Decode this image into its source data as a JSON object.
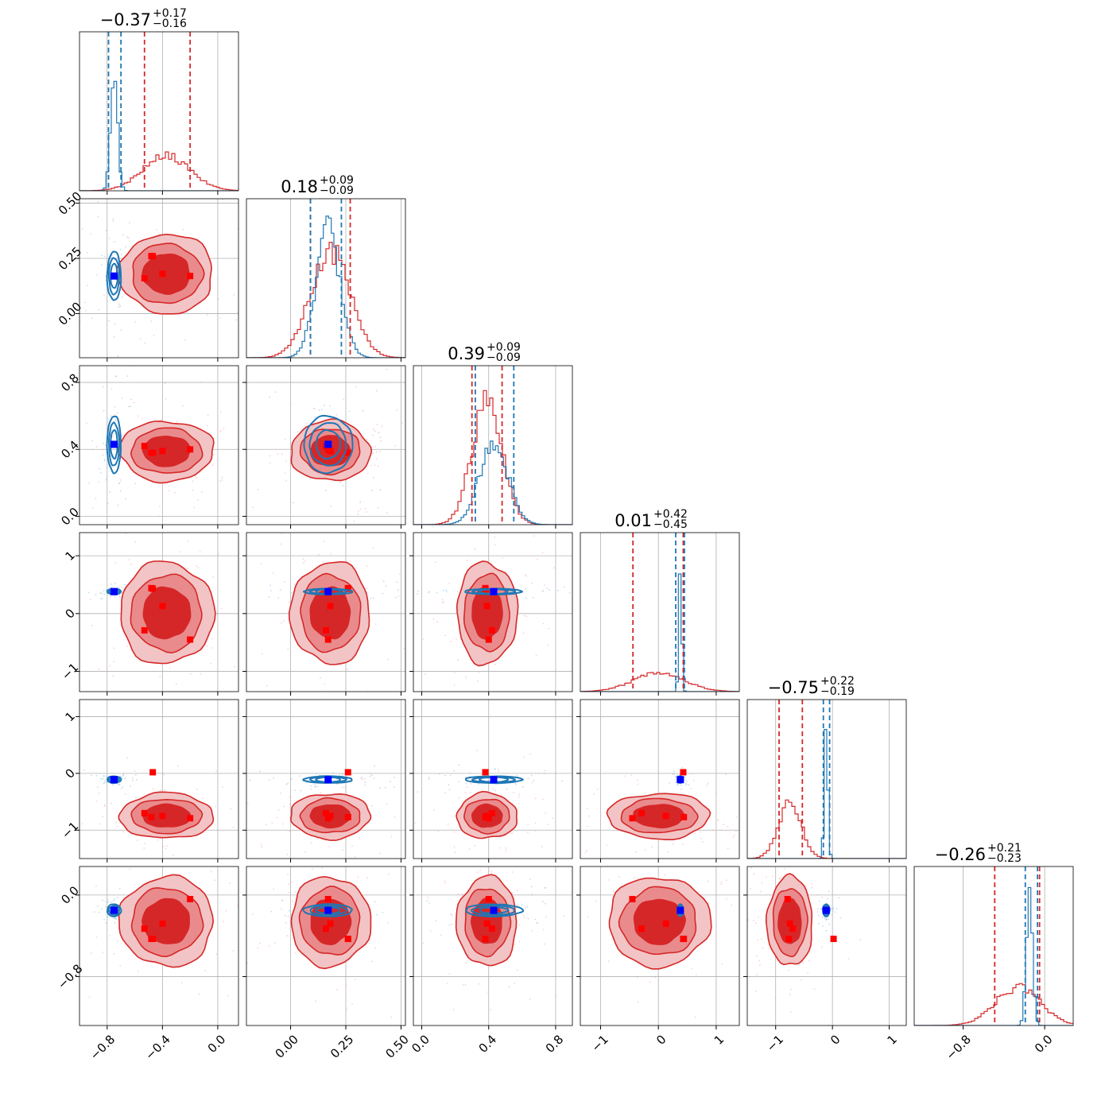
{
  "chart_data": {
    "type": "scatter",
    "subtype": "corner-plot",
    "n_params": 6,
    "colors": {
      "red": "#d62728",
      "blue": "#1f77b4",
      "red_fill_light": "#f2c4c5",
      "red_fill_mid": "#e98b8c",
      "grid": "#b0b0b0"
    },
    "ranges": [
      [
        -1.0,
        0.15
      ],
      [
        -0.2,
        0.52
      ],
      [
        -0.05,
        0.9
      ],
      [
        -1.35,
        1.4
      ],
      [
        -1.5,
        1.3
      ],
      [
        -1.28,
        0.28
      ]
    ],
    "ticks": [
      [
        {
          "v": -0.8,
          "label": "−0.8"
        },
        {
          "v": -0.4,
          "label": "−0.4"
        },
        {
          "v": 0.0,
          "label": "0.0"
        }
      ],
      [
        {
          "v": 0.0,
          "label": "0.00"
        },
        {
          "v": 0.25,
          "label": "0.25"
        },
        {
          "v": 0.5,
          "label": "0.50"
        }
      ],
      [
        {
          "v": 0.0,
          "label": "0.0"
        },
        {
          "v": 0.4,
          "label": "0.4"
        },
        {
          "v": 0.8,
          "label": "0.8"
        }
      ],
      [
        {
          "v": -1,
          "label": "−1"
        },
        {
          "v": 0,
          "label": "0"
        },
        {
          "v": 1,
          "label": "1"
        }
      ],
      [
        {
          "v": -1,
          "label": "−1"
        },
        {
          "v": 0,
          "label": "0"
        },
        {
          "v": 1,
          "label": "1"
        }
      ],
      [
        {
          "v": -0.8,
          "label": "−0.8"
        },
        {
          "v": 0.0,
          "label": "0.0"
        }
      ]
    ],
    "titles": [
      {
        "value": "−0.37",
        "plus": "+0.17",
        "minus": "−0.16"
      },
      {
        "value": "0.18",
        "plus": "+0.09",
        "minus": "−0.09"
      },
      {
        "value": "0.39",
        "plus": "+0.09",
        "minus": "−0.09"
      },
      {
        "value": "0.01",
        "plus": "+0.42",
        "minus": "−0.45"
      },
      {
        "value": "−0.75",
        "plus": "+0.22",
        "minus": "−0.19"
      },
      {
        "value": "−0.26",
        "plus": "+0.21",
        "minus": "−0.23"
      }
    ],
    "red_posterior": {
      "median": [
        -0.37,
        0.18,
        0.39,
        0.01,
        -0.75,
        -0.26
      ],
      "q16": [
        -0.53,
        0.09,
        0.3,
        -0.44,
        -0.94,
        -0.49
      ],
      "q84": [
        -0.2,
        0.27,
        0.48,
        0.43,
        -0.53,
        -0.05
      ],
      "sd": [
        0.17,
        0.09,
        0.09,
        0.44,
        0.2,
        0.22
      ],
      "hist_peak_frac": [
        0.22,
        0.67,
        0.78,
        0.12,
        0.35,
        0.24
      ],
      "markers": [
        [
          -0.53,
          0.16,
          0.42,
          -0.29,
          -0.7,
          -0.33
        ],
        [
          -0.48,
          0.26,
          0.38,
          0.44,
          -0.77,
          -0.43
        ],
        [
          -0.4,
          0.18,
          0.39,
          0.13,
          -0.75,
          -0.28
        ],
        [
          -0.2,
          0.17,
          0.4,
          -0.45,
          -0.79,
          -0.04
        ],
        [
          -0.47,
          0.26,
          0.38,
          0.43,
          0.02,
          -0.43
        ]
      ]
    },
    "blue_posterior": {
      "median": [
        -0.75,
        0.17,
        0.43,
        0.38,
        -0.11,
        -0.15
      ],
      "q16": [
        -0.79,
        0.09,
        0.32,
        0.3,
        -0.16,
        -0.19
      ],
      "q84": [
        -0.7,
        0.23,
        0.55,
        0.45,
        -0.05,
        -0.07
      ],
      "sd": [
        0.025,
        0.055,
        0.085,
        0.025,
        0.03,
        0.03
      ],
      "hist_peak_frac": [
        0.77,
        0.8,
        0.52,
        0.75,
        0.88,
        0.82
      ],
      "truth": [
        -0.75,
        0.17,
        0.43,
        0.38,
        -0.11,
        -0.15
      ]
    }
  }
}
